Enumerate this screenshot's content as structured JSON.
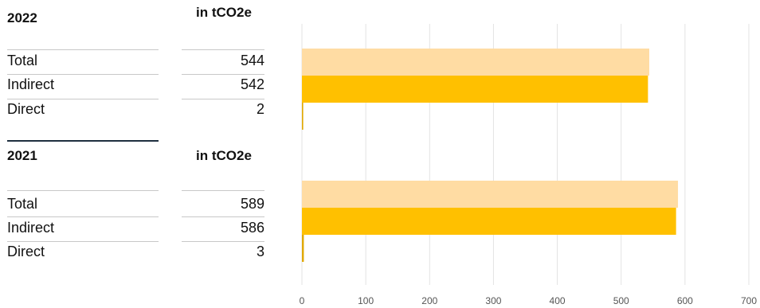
{
  "colors": {
    "total": "#ffdca3",
    "indirect": "#ffc000",
    "direct": "#e0a800",
    "grid": "#e3e3e3"
  },
  "chart_data": {
    "type": "bar",
    "orientation": "horizontal",
    "xlim": [
      0,
      700
    ],
    "xticks": [
      0,
      100,
      200,
      300,
      400,
      500,
      600,
      700
    ],
    "grid": true,
    "groups": [
      {
        "year": "2022",
        "unit": "in tCO2e",
        "rows": [
          {
            "label": "Total",
            "value": 544,
            "display": "544"
          },
          {
            "label": "Indirect",
            "value": 542,
            "display": "542"
          },
          {
            "label": "Direct",
            "value": 2,
            "display": "2"
          }
        ]
      },
      {
        "year": "2021",
        "unit": "in tCO2e",
        "rows": [
          {
            "label": "Total",
            "value": 589,
            "display": "589"
          },
          {
            "label": "Indirect",
            "value": 586,
            "display": "586"
          },
          {
            "label": "Direct",
            "value": 3,
            "display": "3"
          }
        ]
      }
    ]
  }
}
